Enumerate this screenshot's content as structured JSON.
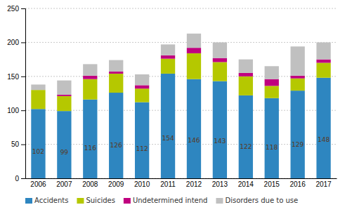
{
  "chart_data": {
    "type": "bar",
    "stacked": true,
    "categories": [
      "2006",
      "2007",
      "2008",
      "2009",
      "2010",
      "2011",
      "2012",
      "2013",
      "2014",
      "2015",
      "2016",
      "2017"
    ],
    "series": [
      {
        "name": "Accidents",
        "color": "#2e86c0",
        "data_labels": true,
        "values": [
          102,
          99,
          116,
          126,
          112,
          154,
          146,
          143,
          122,
          118,
          129,
          148
        ]
      },
      {
        "name": "Suicides",
        "color": "#b5c800",
        "values": [
          28,
          22,
          30,
          28,
          20,
          22,
          38,
          28,
          28,
          18,
          18,
          22
        ]
      },
      {
        "name": "Undetermined intend",
        "color": "#c0007f",
        "values": [
          0,
          2,
          5,
          3,
          5,
          5,
          8,
          6,
          5,
          10,
          4,
          5
        ]
      },
      {
        "name": "Disorders due to use",
        "color": "#c0c0c0",
        "values": [
          8,
          21,
          17,
          17,
          16,
          16,
          21,
          23,
          20,
          19,
          43,
          25
        ]
      }
    ],
    "ylim": [
      0,
      250
    ],
    "yticks": [
      0,
      50,
      100,
      150,
      200,
      250
    ],
    "grid": true,
    "legend": "bottom"
  }
}
